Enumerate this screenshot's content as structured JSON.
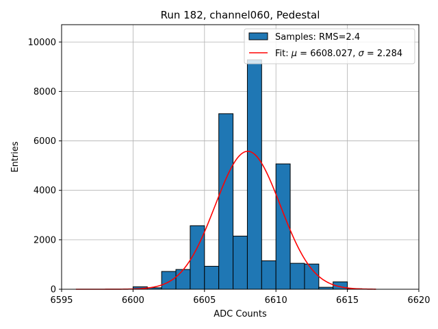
{
  "chart_data": {
    "type": "bar",
    "title": "Run 182, channel060, Pedestal",
    "xlabel": "ADC Counts",
    "ylabel": "Entries",
    "xlim": [
      6595,
      6620
    ],
    "ylim": [
      0,
      10700
    ],
    "xticks": [
      6595,
      6600,
      6605,
      6610,
      6615,
      6620
    ],
    "yticks": [
      0,
      2000,
      4000,
      6000,
      8000,
      10000
    ],
    "grid": true,
    "legend_position": "top-right",
    "bin_width": 1,
    "bins": [
      {
        "x0": 6600,
        "value": 100
      },
      {
        "x0": 6601,
        "value": 60
      },
      {
        "x0": 6602,
        "value": 720
      },
      {
        "x0": 6603,
        "value": 800
      },
      {
        "x0": 6604,
        "value": 2570
      },
      {
        "x0": 6605,
        "value": 930
      },
      {
        "x0": 6606,
        "value": 7100
      },
      {
        "x0": 6607,
        "value": 2150
      },
      {
        "x0": 6608,
        "value": 9280
      },
      {
        "x0": 6609,
        "value": 1150
      },
      {
        "x0": 6610,
        "value": 5070
      },
      {
        "x0": 6611,
        "value": 1050
      },
      {
        "x0": 6612,
        "value": 1020
      },
      {
        "x0": 6613,
        "value": 80
      },
      {
        "x0": 6614,
        "value": 300
      },
      {
        "x0": 6615,
        "value": 20
      }
    ],
    "series": [
      {
        "name": "Samples: RMS=2.4",
        "kind": "histogram",
        "color": "#1f77b4"
      },
      {
        "name": "Fit",
        "kind": "line",
        "color": "#ff0000"
      }
    ],
    "fit": {
      "mu": 6608.027,
      "sigma": 2.284,
      "amplitude": 5580,
      "x_range": [
        6596,
        6617
      ],
      "label_prefix": "Fit: ",
      "mu_symbol": "μ",
      "mu_value": " = 6608.027, ",
      "sigma_symbol": "σ",
      "sigma_value": " = 2.284"
    }
  }
}
